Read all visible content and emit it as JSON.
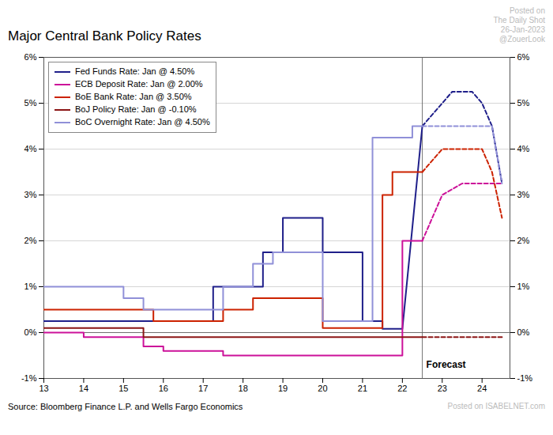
{
  "chart_data": {
    "type": "line",
    "title": "Major Central Bank Policy Rates",
    "source": "Source: Bloomberg Finance L.P. and Wells Fargo Economics",
    "annotations_top": [
      "Posted on",
      "The Daily Shot",
      "26-Jan-2023",
      "@ZouerLook"
    ],
    "annotations_bottom": [
      "Posted on",
      "ISABELNET.com"
    ],
    "xlim": [
      13,
      24.7
    ],
    "ylim": [
      -1.0,
      6.0
    ],
    "xticks": [
      13,
      14,
      15,
      16,
      17,
      18,
      19,
      20,
      21,
      22,
      23,
      24
    ],
    "yticks": [
      {
        "value": -1,
        "label": "-1%"
      },
      {
        "value": 0,
        "label": "0%"
      },
      {
        "value": 1,
        "label": "1%"
      },
      {
        "value": 2,
        "label": "2%"
      },
      {
        "value": 3,
        "label": "3%"
      },
      {
        "value": 4,
        "label": "4%"
      },
      {
        "value": 5,
        "label": "5%"
      },
      {
        "value": 6,
        "label": "6%"
      }
    ],
    "grid": "y",
    "legend": "top-left",
    "baseline": 0,
    "forecast": {
      "x": 22.5,
      "label": "Forecast",
      "line_style": "dashed"
    },
    "series": [
      {
        "name": "Fed Funds Rate: Jan @ 4.50%",
        "color": "#1f1f8a",
        "x": [
          13,
          13,
          15.25,
          15.25,
          15.5,
          15.5,
          17.0,
          17.0,
          17.25,
          17.25,
          18.5,
          18.5,
          19.0,
          19.0,
          19.5,
          19.5,
          20.0,
          20.0,
          20.5,
          20.5,
          21.0,
          21.0,
          21.5,
          21.5,
          22.0,
          22.0,
          22.5,
          22.5
        ],
        "values": [
          0.25,
          0.25,
          0.25,
          0.25,
          0.25,
          0.25,
          0.25,
          0.25,
          0.25,
          1.0,
          1.0,
          1.75,
          1.75,
          2.5,
          2.5,
          2.5,
          2.5,
          1.75,
          1.75,
          1.75,
          1.75,
          0.25,
          0.25,
          0.08,
          0.08,
          0.08,
          4.5,
          4.5
        ],
        "forecast_x": [
          22.5,
          23.0,
          23.25,
          23.5,
          23.75,
          24.0,
          24.25,
          24.5
        ],
        "forecast_values": [
          4.5,
          5.0,
          5.25,
          5.25,
          5.25,
          5.0,
          4.5,
          3.25
        ]
      },
      {
        "name": "ECB Deposit Rate: Jan @ 2.00%",
        "color": "#cc1199",
        "x": [
          13,
          13,
          14.0,
          14.0,
          15.5,
          15.5,
          16.0,
          16.0,
          17.5,
          17.5,
          18.25,
          18.25,
          22.0,
          22.0,
          22.5,
          22.5
        ],
        "values": [
          0.0,
          0.0,
          0.0,
          -0.1,
          -0.1,
          -0.3,
          -0.3,
          -0.4,
          -0.4,
          -0.5,
          -0.5,
          -0.5,
          -0.5,
          2.0,
          2.0,
          2.0
        ],
        "forecast_x": [
          22.5,
          23.0,
          23.5,
          24.0,
          24.25,
          24.5
        ],
        "forecast_values": [
          2.0,
          3.0,
          3.25,
          3.25,
          3.25,
          3.25
        ]
      },
      {
        "name": "BoE Bank Rate: Jan @ 3.50%",
        "color": "#cc2200",
        "x": [
          13,
          13,
          15.75,
          15.75,
          16.5,
          16.5,
          17.0,
          17.0,
          17.5,
          17.5,
          18.25,
          18.25,
          19.0,
          19.0,
          19.5,
          19.5,
          20.0,
          20.0,
          20.5,
          20.5,
          21.0,
          21.0,
          21.5,
          21.5,
          21.75,
          21.75,
          22.0,
          22.0,
          22.5,
          22.5
        ],
        "values": [
          0.5,
          0.5,
          0.5,
          0.25,
          0.25,
          0.25,
          0.25,
          0.25,
          0.25,
          0.5,
          0.5,
          0.75,
          0.75,
          0.75,
          0.75,
          0.75,
          0.75,
          0.1,
          0.1,
          0.1,
          0.1,
          0.1,
          0.1,
          3.0,
          3.0,
          3.5,
          3.5,
          3.5,
          3.5,
          3.5
        ],
        "forecast_x": [
          22.5,
          23.0,
          23.5,
          24.0,
          24.25,
          24.5
        ],
        "forecast_values": [
          3.5,
          4.0,
          4.0,
          4.0,
          3.5,
          2.5
        ]
      },
      {
        "name": "BoJ Policy Rate: Jan @ -0.10%",
        "color": "#8b1515",
        "x": [
          13,
          13,
          15.5,
          15.5,
          22.5
        ],
        "values": [
          0.1,
          0.1,
          0.1,
          -0.1,
          -0.1
        ],
        "forecast_x": [
          22.5,
          23.0,
          23.5,
          24.0,
          24.5
        ],
        "forecast_values": [
          -0.1,
          -0.1,
          -0.1,
          -0.1,
          -0.1
        ]
      },
      {
        "name": "BoC Overnight Rate: Jan @ 4.50%",
        "color": "#9090d8",
        "x": [
          13,
          13,
          15.0,
          15.0,
          15.5,
          15.5,
          16.25,
          16.25,
          17.0,
          17.0,
          17.5,
          17.5,
          18.25,
          18.25,
          18.75,
          18.75,
          19.0,
          19.0,
          19.5,
          19.5,
          20.0,
          20.0,
          20.5,
          20.5,
          21.0,
          21.0,
          21.25,
          21.25,
          22.0,
          22.0,
          22.25,
          22.25,
          22.5
        ],
        "values": [
          1.0,
          1.0,
          1.0,
          0.75,
          0.75,
          0.5,
          0.5,
          0.5,
          0.5,
          0.5,
          0.5,
          1.0,
          1.0,
          1.5,
          1.5,
          1.75,
          1.75,
          1.75,
          1.75,
          1.75,
          1.75,
          0.25,
          0.25,
          0.25,
          0.25,
          0.25,
          0.25,
          4.25,
          4.25,
          4.25,
          4.25,
          4.5,
          4.5
        ],
        "forecast_x": [
          22.5,
          23.0,
          23.5,
          24.0,
          24.25,
          24.5
        ],
        "forecast_values": [
          4.5,
          4.5,
          4.5,
          4.5,
          4.5,
          3.25
        ]
      }
    ]
  }
}
